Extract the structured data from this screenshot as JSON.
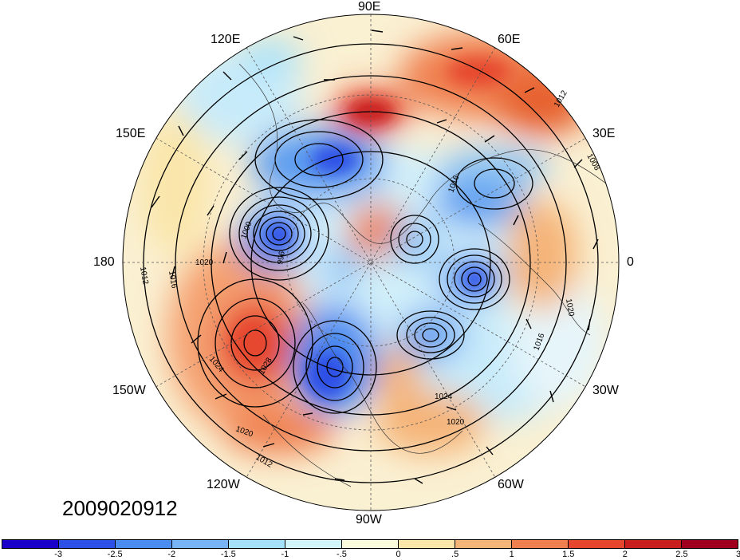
{
  "timestamp": "2009020912",
  "longitude_labels": {
    "top": "90E",
    "upper_left": "120E",
    "upper_right": "60E",
    "mid_upper_left": "150E",
    "mid_upper_right": "30E",
    "left": "180",
    "right": "0",
    "mid_lower_left": "150W",
    "mid_lower_right": "30W",
    "lower_left": "120W",
    "lower_right": "60W",
    "bottom": "90W"
  },
  "isobar_labels": [
    "1012",
    "1016",
    "1020",
    "1024",
    "1008",
    "1000",
    "996",
    "1028"
  ],
  "colorbar": {
    "colors": [
      "#1a00c8",
      "#2d50e6",
      "#4b8cf0",
      "#78b4f5",
      "#a5e1fa",
      "#d2f5fa",
      "#fafadc",
      "#fae6aa",
      "#f5b478",
      "#f08050",
      "#e6462d",
      "#c81e1e",
      "#a0001e"
    ],
    "tick_labels": [
      "-3",
      "-2.5",
      "-2",
      "-1.5",
      "-1",
      "-.5",
      "0",
      ".5",
      "1",
      "1.5",
      "2",
      "2.5",
      "3"
    ]
  }
}
